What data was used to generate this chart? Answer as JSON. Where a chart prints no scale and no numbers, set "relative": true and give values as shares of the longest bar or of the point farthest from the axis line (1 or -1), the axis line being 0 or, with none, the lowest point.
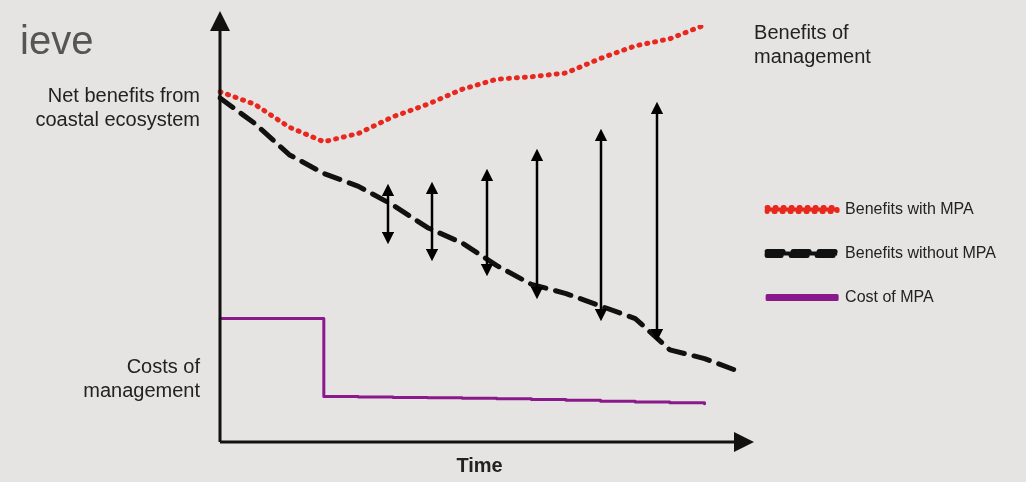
{
  "chart_data": {
    "type": "line",
    "title": "ieve",
    "xlabel": "Time",
    "relative": true,
    "legend": "right",
    "grid": false,
    "marker": "none",
    "categories": [
      null,
      null,
      null,
      null,
      null,
      null,
      null,
      null,
      null,
      null,
      null,
      null,
      null,
      null,
      null,
      null
    ],
    "series": [
      {
        "name": "Benefits with MPA",
        "color": "#e8281e",
        "line_style": "dotted",
        "values": [
          0.84,
          0.81,
          0.755,
          0.72,
          0.74,
          0.78,
          0.81,
          0.846,
          0.87,
          0.876,
          0.885,
          0.92,
          0.95,
          0.967,
          1,
          null
        ]
      },
      {
        "name": "Benefits without MPA",
        "color": "#111111",
        "line_style": "dashed",
        "values": [
          0.825,
          0.764,
          0.689,
          0.644,
          0.613,
          0.568,
          0.514,
          0.477,
          0.423,
          0.378,
          0.356,
          0.326,
          0.296,
          0.221,
          0.2,
          0.169
        ]
      },
      {
        "name": "Cost of MPA",
        "color": "#8a1a8c",
        "type": "step",
        "line_style": "solid",
        "values": [
          0.296,
          0.296,
          0.296,
          0.109,
          0.108,
          0.107,
          0.106,
          0.105,
          0.104,
          0.102,
          0.1,
          0.098,
          0.096,
          0.094,
          0.092,
          null
        ]
      }
    ],
    "annotations": [
      "Net benefits from coastal ecosystem",
      "Costs of management",
      "Benefits of management"
    ]
  }
}
